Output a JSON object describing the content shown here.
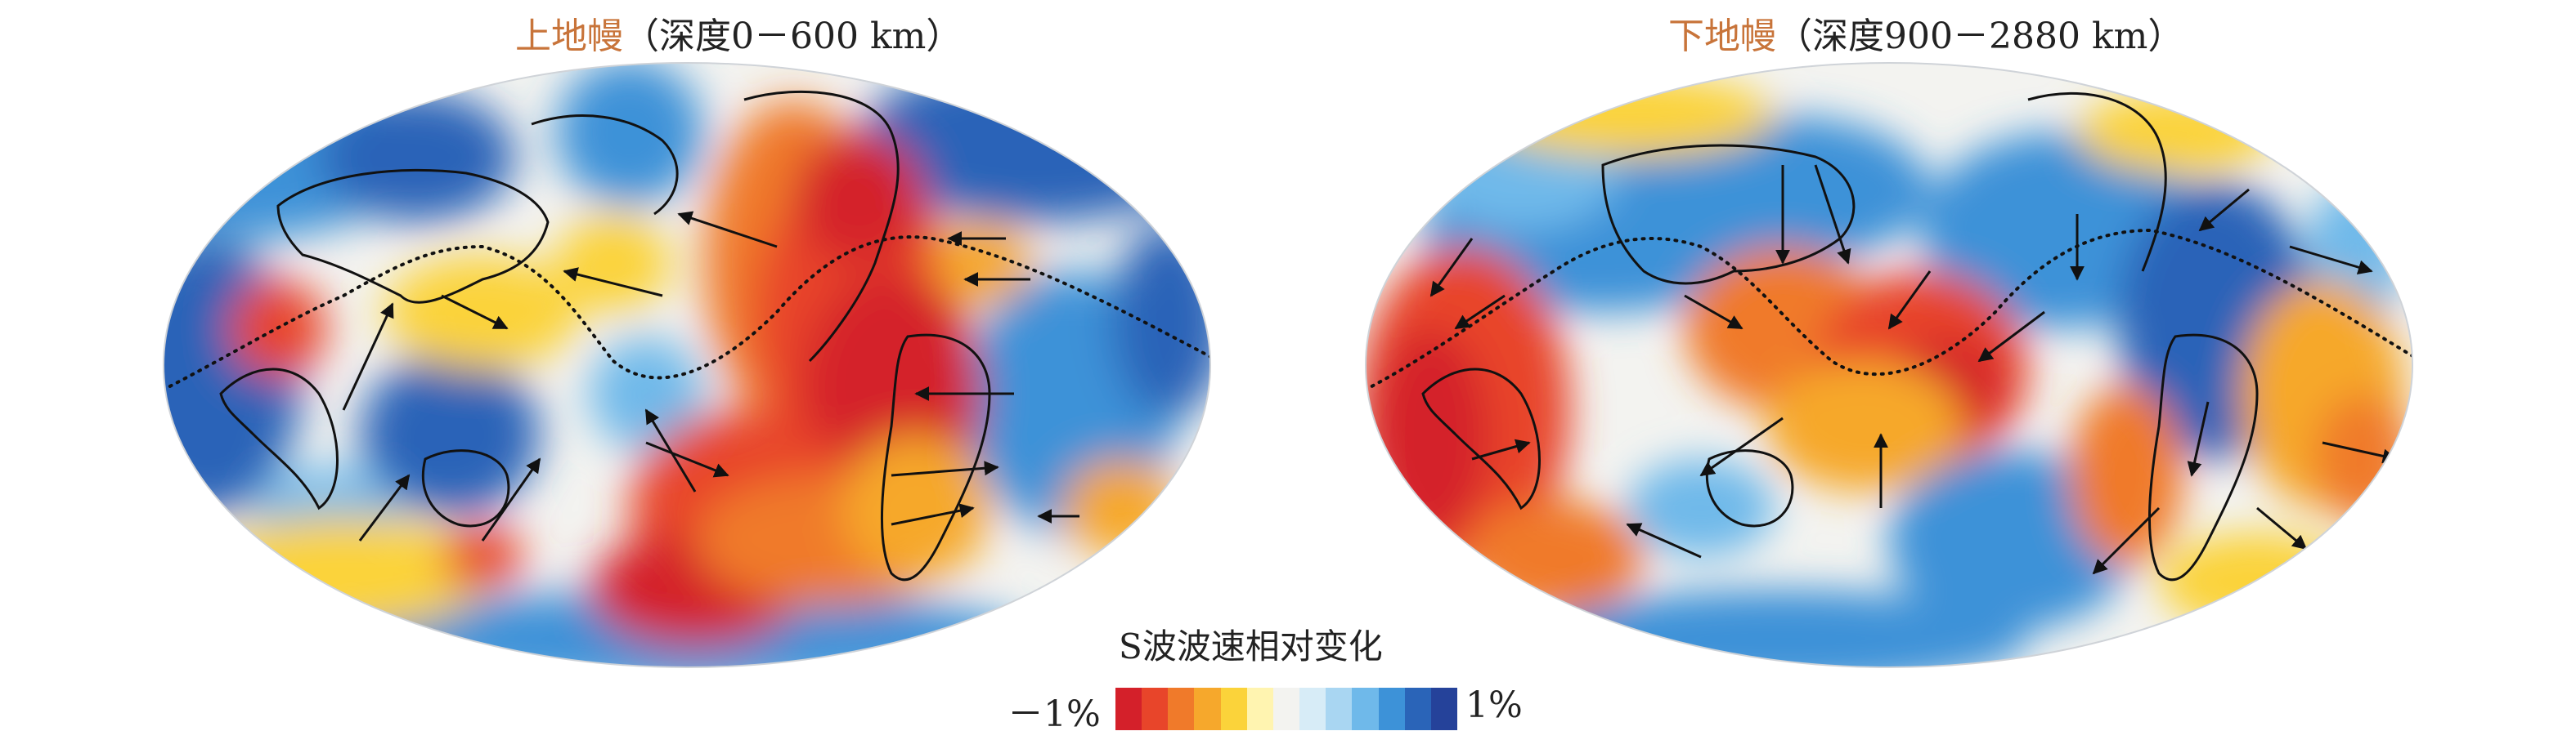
{
  "panels": [
    {
      "title_main": "上地幔",
      "title_sub": "（深度0－600 km）"
    },
    {
      "title_main": "下地幔",
      "title_sub": "（深度900－2880 km）"
    }
  ],
  "legend": {
    "title": "S波波速相对变化",
    "min_label": "－1%",
    "max_label": "1%",
    "colors": [
      "#d4202a",
      "#e8452a",
      "#f07a2a",
      "#f6a82c",
      "#fbd33a",
      "#fff4b0",
      "#f3f3f0",
      "#d7ecf7",
      "#a9d6f2",
      "#6fb9ea",
      "#3d92d8",
      "#2a64b8",
      "#25429a"
    ]
  }
}
